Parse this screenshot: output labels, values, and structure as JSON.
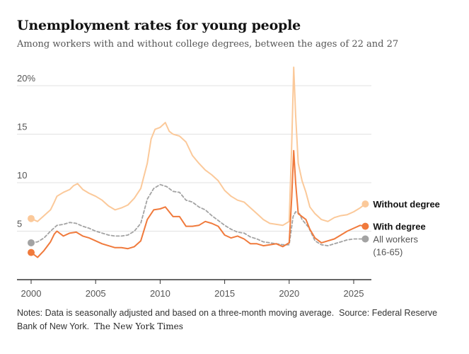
{
  "header": {
    "title": "Unemployment rates for young people",
    "subtitle": "Among workers with and without college degrees, between the ages of 22 and 27"
  },
  "footer": {
    "notes": "Notes: Data is seasonally adjusted and based on a three-month moving average.",
    "source": "Source: Federal Reserve Bank of New York.",
    "credit": "The New York Times"
  },
  "colors": {
    "without_degree": "#fbc99a",
    "with_degree": "#f07a3c",
    "all_workers": "#a3a3a3",
    "grid": "#e2e2e2",
    "axis": "#333333",
    "text": "#555555"
  },
  "chart_data": {
    "type": "line",
    "title": "Unemployment rates for young people",
    "subtitle": "Among workers with and without college degrees, between the ages of 22 and 27",
    "xlabel": "",
    "ylabel": "",
    "xlim": [
      2000,
      2026
    ],
    "ylim": [
      0,
      22
    ],
    "y_ticks": [
      5,
      10,
      15,
      20
    ],
    "y_tick_labels": [
      "5",
      "10",
      "15",
      "20%"
    ],
    "x_ticks": [
      2000,
      2005,
      2010,
      2015,
      2020,
      2025
    ],
    "x_tick_labels": [
      "2000",
      "2005",
      "2010",
      "2015",
      "2020",
      "2025"
    ],
    "grid": "horizontal",
    "legend": "direct labels at line ends (right)",
    "series": [
      {
        "name": "Without degree",
        "color": "#fbc99a",
        "style": "solid",
        "points": [
          [
            2000.0,
            6.3
          ],
          [
            2000.5,
            6.0
          ],
          [
            2001.0,
            6.6
          ],
          [
            2001.5,
            7.2
          ],
          [
            2001.8,
            8.0
          ],
          [
            2002.0,
            8.6
          ],
          [
            2002.5,
            9.0
          ],
          [
            2003.0,
            9.3
          ],
          [
            2003.3,
            9.7
          ],
          [
            2003.6,
            9.9
          ],
          [
            2004.0,
            9.3
          ],
          [
            2004.5,
            8.9
          ],
          [
            2005.0,
            8.6
          ],
          [
            2005.5,
            8.2
          ],
          [
            2006.0,
            7.6
          ],
          [
            2006.5,
            7.2
          ],
          [
            2007.0,
            7.4
          ],
          [
            2007.5,
            7.7
          ],
          [
            2008.0,
            8.4
          ],
          [
            2008.5,
            9.4
          ],
          [
            2009.0,
            12.0
          ],
          [
            2009.3,
            14.5
          ],
          [
            2009.6,
            15.5
          ],
          [
            2010.0,
            15.7
          ],
          [
            2010.4,
            16.2
          ],
          [
            2010.7,
            15.3
          ],
          [
            2011.0,
            15.0
          ],
          [
            2011.5,
            14.8
          ],
          [
            2012.0,
            14.2
          ],
          [
            2012.5,
            12.8
          ],
          [
            2013.0,
            12.0
          ],
          [
            2013.5,
            11.3
          ],
          [
            2014.0,
            10.8
          ],
          [
            2014.5,
            10.2
          ],
          [
            2015.0,
            9.2
          ],
          [
            2015.5,
            8.6
          ],
          [
            2016.0,
            8.2
          ],
          [
            2016.5,
            8.0
          ],
          [
            2017.0,
            7.4
          ],
          [
            2017.5,
            6.8
          ],
          [
            2018.0,
            6.2
          ],
          [
            2018.5,
            5.8
          ],
          [
            2019.0,
            5.7
          ],
          [
            2019.5,
            5.6
          ],
          [
            2020.0,
            6.0
          ],
          [
            2020.2,
            14.0
          ],
          [
            2020.35,
            21.9
          ],
          [
            2020.5,
            17.0
          ],
          [
            2020.7,
            12.0
          ],
          [
            2021.0,
            10.2
          ],
          [
            2021.3,
            9.0
          ],
          [
            2021.6,
            7.5
          ],
          [
            2022.0,
            6.8
          ],
          [
            2022.5,
            6.2
          ],
          [
            2023.0,
            6.0
          ],
          [
            2023.5,
            6.4
          ],
          [
            2024.0,
            6.6
          ],
          [
            2024.5,
            6.7
          ],
          [
            2025.0,
            7.0
          ],
          [
            2025.5,
            7.4
          ],
          [
            2025.9,
            7.8
          ]
        ]
      },
      {
        "name": "With degree",
        "color": "#f07a3c",
        "style": "solid",
        "points": [
          [
            2000.0,
            2.8
          ],
          [
            2000.5,
            2.3
          ],
          [
            2001.0,
            3.0
          ],
          [
            2001.5,
            3.9
          ],
          [
            2001.8,
            4.7
          ],
          [
            2002.0,
            5.0
          ],
          [
            2002.5,
            4.5
          ],
          [
            2003.0,
            4.8
          ],
          [
            2003.5,
            4.9
          ],
          [
            2004.0,
            4.5
          ],
          [
            2004.5,
            4.3
          ],
          [
            2005.0,
            4.0
          ],
          [
            2005.5,
            3.7
          ],
          [
            2006.0,
            3.5
          ],
          [
            2006.5,
            3.3
          ],
          [
            2007.0,
            3.3
          ],
          [
            2007.5,
            3.2
          ],
          [
            2008.0,
            3.4
          ],
          [
            2008.5,
            4.0
          ],
          [
            2009.0,
            6.2
          ],
          [
            2009.5,
            7.2
          ],
          [
            2010.0,
            7.3
          ],
          [
            2010.4,
            7.5
          ],
          [
            2010.7,
            7.0
          ],
          [
            2011.0,
            6.5
          ],
          [
            2011.5,
            6.5
          ],
          [
            2012.0,
            5.5
          ],
          [
            2012.5,
            5.5
          ],
          [
            2013.0,
            5.6
          ],
          [
            2013.5,
            6.0
          ],
          [
            2014.0,
            5.8
          ],
          [
            2014.5,
            5.5
          ],
          [
            2015.0,
            4.6
          ],
          [
            2015.5,
            4.3
          ],
          [
            2016.0,
            4.5
          ],
          [
            2016.5,
            4.2
          ],
          [
            2017.0,
            3.7
          ],
          [
            2017.5,
            3.7
          ],
          [
            2018.0,
            3.5
          ],
          [
            2018.5,
            3.6
          ],
          [
            2019.0,
            3.7
          ],
          [
            2019.5,
            3.4
          ],
          [
            2020.0,
            3.8
          ],
          [
            2020.2,
            8.5
          ],
          [
            2020.35,
            13.3
          ],
          [
            2020.5,
            10.0
          ],
          [
            2020.7,
            6.8
          ],
          [
            2021.0,
            6.5
          ],
          [
            2021.3,
            6.2
          ],
          [
            2021.6,
            5.2
          ],
          [
            2022.0,
            4.3
          ],
          [
            2022.5,
            3.8
          ],
          [
            2023.0,
            4.0
          ],
          [
            2023.5,
            4.2
          ],
          [
            2024.0,
            4.6
          ],
          [
            2024.5,
            5.0
          ],
          [
            2025.0,
            5.3
          ],
          [
            2025.5,
            5.6
          ],
          [
            2025.9,
            5.5
          ]
        ]
      },
      {
        "name": "All workers (16-65)",
        "color": "#a3a3a3",
        "style": "dashed",
        "points": [
          [
            2000.0,
            3.8
          ],
          [
            2000.5,
            3.9
          ],
          [
            2001.0,
            4.3
          ],
          [
            2001.5,
            5.0
          ],
          [
            2002.0,
            5.6
          ],
          [
            2002.5,
            5.7
          ],
          [
            2003.0,
            5.9
          ],
          [
            2003.5,
            5.8
          ],
          [
            2004.0,
            5.5
          ],
          [
            2004.5,
            5.3
          ],
          [
            2005.0,
            5.0
          ],
          [
            2005.5,
            4.8
          ],
          [
            2006.0,
            4.6
          ],
          [
            2006.5,
            4.5
          ],
          [
            2007.0,
            4.5
          ],
          [
            2007.5,
            4.6
          ],
          [
            2008.0,
            5.0
          ],
          [
            2008.5,
            5.8
          ],
          [
            2009.0,
            8.3
          ],
          [
            2009.5,
            9.4
          ],
          [
            2010.0,
            9.8
          ],
          [
            2010.5,
            9.6
          ],
          [
            2011.0,
            9.1
          ],
          [
            2011.5,
            9.0
          ],
          [
            2012.0,
            8.2
          ],
          [
            2012.5,
            8.0
          ],
          [
            2013.0,
            7.5
          ],
          [
            2013.5,
            7.2
          ],
          [
            2014.0,
            6.6
          ],
          [
            2014.5,
            6.1
          ],
          [
            2015.0,
            5.6
          ],
          [
            2015.5,
            5.2
          ],
          [
            2016.0,
            4.9
          ],
          [
            2016.5,
            4.8
          ],
          [
            2017.0,
            4.4
          ],
          [
            2017.5,
            4.2
          ],
          [
            2018.0,
            3.9
          ],
          [
            2018.5,
            3.8
          ],
          [
            2019.0,
            3.7
          ],
          [
            2019.5,
            3.6
          ],
          [
            2020.0,
            3.6
          ],
          [
            2020.3,
            6.5
          ],
          [
            2020.5,
            7.0
          ],
          [
            2020.8,
            6.8
          ],
          [
            2021.0,
            6.2
          ],
          [
            2021.5,
            5.4
          ],
          [
            2022.0,
            4.0
          ],
          [
            2022.5,
            3.6
          ],
          [
            2023.0,
            3.5
          ],
          [
            2023.5,
            3.7
          ],
          [
            2024.0,
            3.9
          ],
          [
            2024.5,
            4.1
          ],
          [
            2025.0,
            4.2
          ],
          [
            2025.5,
            4.2
          ],
          [
            2025.9,
            4.2
          ]
        ]
      }
    ],
    "start_markers": [
      {
        "series": "Without degree",
        "x": 2000.0,
        "y": 6.3
      },
      {
        "series": "With degree",
        "x": 2000.0,
        "y": 2.8
      },
      {
        "series": "All workers (16-65)",
        "x": 2000.0,
        "y": 3.8
      }
    ],
    "end_labels": [
      {
        "series": "Without degree",
        "lines": [
          "Without degree"
        ],
        "bold": true
      },
      {
        "series": "With degree",
        "lines": [
          "With degree"
        ],
        "bold": true
      },
      {
        "series": "All workers (16-65)",
        "lines": [
          "All workers",
          "(16-65)"
        ],
        "bold": false
      }
    ]
  }
}
